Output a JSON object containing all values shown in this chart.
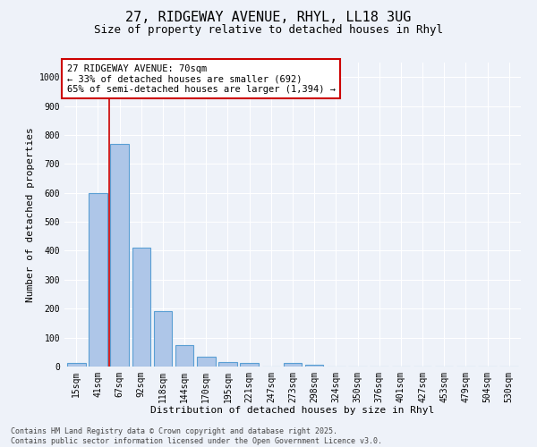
{
  "title_line1": "27, RIDGEWAY AVENUE, RHYL, LL18 3UG",
  "title_line2": "Size of property relative to detached houses in Rhyl",
  "xlabel": "Distribution of detached houses by size in Rhyl",
  "ylabel": "Number of detached properties",
  "categories": [
    "15sqm",
    "41sqm",
    "67sqm",
    "92sqm",
    "118sqm",
    "144sqm",
    "170sqm",
    "195sqm",
    "221sqm",
    "247sqm",
    "273sqm",
    "298sqm",
    "324sqm",
    "350sqm",
    "376sqm",
    "401sqm",
    "427sqm",
    "453sqm",
    "479sqm",
    "504sqm",
    "530sqm"
  ],
  "values": [
    12,
    600,
    770,
    410,
    190,
    75,
    35,
    15,
    12,
    0,
    12,
    5,
    0,
    0,
    0,
    0,
    0,
    0,
    0,
    0,
    0
  ],
  "bar_color": "#aec6e8",
  "bar_edge_color": "#5a9fd4",
  "vline_x": 1.5,
  "vline_color": "#cc0000",
  "annotation_text": "27 RIDGEWAY AVENUE: 70sqm\n← 33% of detached houses are smaller (692)\n65% of semi-detached houses are larger (1,394) →",
  "annotation_box_color": "#ffffff",
  "annotation_box_edge_color": "#cc0000",
  "ylim": [
    0,
    1050
  ],
  "yticks": [
    0,
    100,
    200,
    300,
    400,
    500,
    600,
    700,
    800,
    900,
    1000
  ],
  "background_color": "#eef2f9",
  "footer_line1": "Contains HM Land Registry data © Crown copyright and database right 2025.",
  "footer_line2": "Contains public sector information licensed under the Open Government Licence v3.0.",
  "grid_color": "#ffffff",
  "title_fontsize": 11,
  "subtitle_fontsize": 9,
  "axis_label_fontsize": 8,
  "tick_fontsize": 7,
  "annotation_fontsize": 7.5,
  "footer_fontsize": 6
}
